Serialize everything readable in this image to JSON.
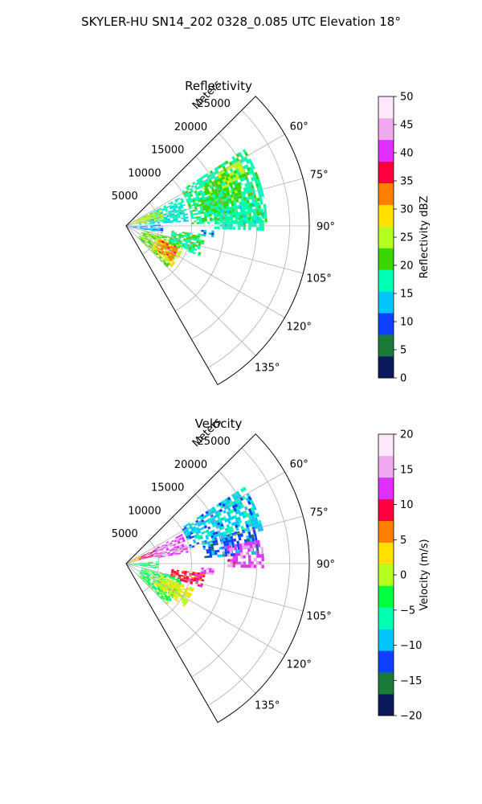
{
  "figure": {
    "suptitle": "SKYLER-HU  SN14_202  0328_0.085 UTC Elevation 18°"
  },
  "chart_data": [
    {
      "type": "heatmap",
      "projection": "polar-sector",
      "title": "Reflectivity",
      "radial_label": "Meters",
      "radial_ticks": [
        "5000",
        "10000",
        "15000",
        "20000",
        "25000"
      ],
      "radial_tick_values": [
        5000,
        10000,
        15000,
        20000,
        25000
      ],
      "rmax": 28000,
      "azimuth_range": [
        45,
        150
      ],
      "azimuth_ticks": [
        "60°",
        "75°",
        "90°",
        "105°",
        "120°",
        "135°"
      ],
      "azimuth_tick_values": [
        60,
        75,
        90,
        105,
        120,
        135
      ],
      "grid": true,
      "colorbar": {
        "label": "Reflectivity dBZ",
        "range": [
          0,
          50
        ],
        "ticks": [
          "0",
          "5",
          "10",
          "15",
          "20",
          "25",
          "30",
          "35",
          "40",
          "45",
          "50"
        ],
        "tick_values": [
          0,
          5,
          10,
          15,
          20,
          25,
          30,
          35,
          40,
          45,
          50
        ],
        "colors": [
          "#0a1a5c",
          "#1a7a3a",
          "#1040ff",
          "#00c8ff",
          "#00ffb0",
          "#3ad400",
          "#b4ff20",
          "#ffe000",
          "#ff8000",
          "#ff0040",
          "#e030ff",
          "#f0a8f0",
          "#fde8fb"
        ]
      },
      "echo_regions": [
        {
          "az": [
            57,
            88
          ],
          "r": [
            10000,
            21500
          ],
          "value": 18
        },
        {
          "az": [
            63,
            76
          ],
          "r": [
            13000,
            18500
          ],
          "value": 22
        },
        {
          "az": [
            70,
            86
          ],
          "r": [
            12000,
            16000
          ],
          "value": 20
        },
        {
          "az": [
            80,
            92
          ],
          "r": [
            13500,
            21000
          ],
          "value": 17
        },
        {
          "az": [
            60,
            68
          ],
          "r": [
            16000,
            20000
          ],
          "value": 25
        },
        {
          "az": [
            62,
            86
          ],
          "r": [
            2000,
            9500
          ],
          "value": 16
        },
        {
          "az": [
            64,
            80
          ],
          "r": [
            1500,
            6000
          ],
          "value": 25
        },
        {
          "az": [
            60,
            72
          ],
          "r": [
            500,
            3500
          ],
          "value": 28
        },
        {
          "az": [
            88,
            102
          ],
          "r": [
            500,
            5500
          ],
          "value": 13
        },
        {
          "az": [
            104,
            136
          ],
          "r": [
            2500,
            9000
          ],
          "value": 22
        },
        {
          "az": [
            110,
            132
          ],
          "r": [
            5000,
            9500
          ],
          "value": 28
        },
        {
          "az": [
            112,
            128
          ],
          "r": [
            5500,
            8500
          ],
          "value": 33
        },
        {
          "az": [
            96,
            112
          ],
          "r": [
            7000,
            12000
          ],
          "value": 18
        },
        {
          "az": [
            93,
            97
          ],
          "r": [
            11500,
            13500
          ],
          "value": 12
        }
      ]
    },
    {
      "type": "heatmap",
      "projection": "polar-sector",
      "title": "Velocity",
      "radial_label": "Meters",
      "radial_ticks": [
        "5000",
        "10000",
        "15000",
        "20000",
        "25000"
      ],
      "radial_tick_values": [
        5000,
        10000,
        15000,
        20000,
        25000
      ],
      "rmax": 28000,
      "azimuth_range": [
        45,
        150
      ],
      "azimuth_ticks": [
        "60°",
        "75°",
        "90°",
        "105°",
        "120°",
        "135°"
      ],
      "azimuth_tick_values": [
        60,
        75,
        90,
        105,
        120,
        135
      ],
      "grid": true,
      "colorbar": {
        "label": "Velocity (m/s)",
        "range": [
          -20,
          20
        ],
        "ticks": [
          "−20",
          "−15",
          "−10",
          "−5",
          "0",
          "5",
          "10",
          "15",
          "20"
        ],
        "tick_values": [
          -20,
          -15,
          -10,
          -5,
          0,
          5,
          10,
          15,
          20
        ],
        "colors": [
          "#0a1a5c",
          "#1a7a3a",
          "#1040ff",
          "#00c8ff",
          "#00ffb0",
          "#00ff40",
          "#b4ff20",
          "#ffe000",
          "#ff8000",
          "#ff0040",
          "#e030ff",
          "#f0a8f0",
          "#fde8fb"
        ]
      },
      "echo_regions": [
        {
          "az": [
            57,
            76
          ],
          "r": [
            10000,
            21500
          ],
          "value": -9
        },
        {
          "az": [
            74,
            86
          ],
          "r": [
            12000,
            20500
          ],
          "value": -12
        },
        {
          "az": [
            80,
            92
          ],
          "r": [
            15500,
            21000
          ],
          "value": 13
        },
        {
          "az": [
            62,
            80
          ],
          "r": [
            4500,
            9500
          ],
          "value": 14
        },
        {
          "az": [
            64,
            76
          ],
          "r": [
            2000,
            5000
          ],
          "value": 10
        },
        {
          "az": [
            62,
            72
          ],
          "r": [
            500,
            2500
          ],
          "value": 4
        },
        {
          "az": [
            86,
            100
          ],
          "r": [
            500,
            5000
          ],
          "value": -4
        },
        {
          "az": [
            104,
            136
          ],
          "r": [
            2500,
            9000
          ],
          "value": -3
        },
        {
          "az": [
            110,
            126
          ],
          "r": [
            5500,
            11000
          ],
          "value": 2
        },
        {
          "az": [
            97,
            108
          ],
          "r": [
            7000,
            12000
          ],
          "value": 9
        },
        {
          "az": [
            93,
            97
          ],
          "r": [
            11500,
            13500
          ],
          "value": 15
        }
      ]
    }
  ]
}
